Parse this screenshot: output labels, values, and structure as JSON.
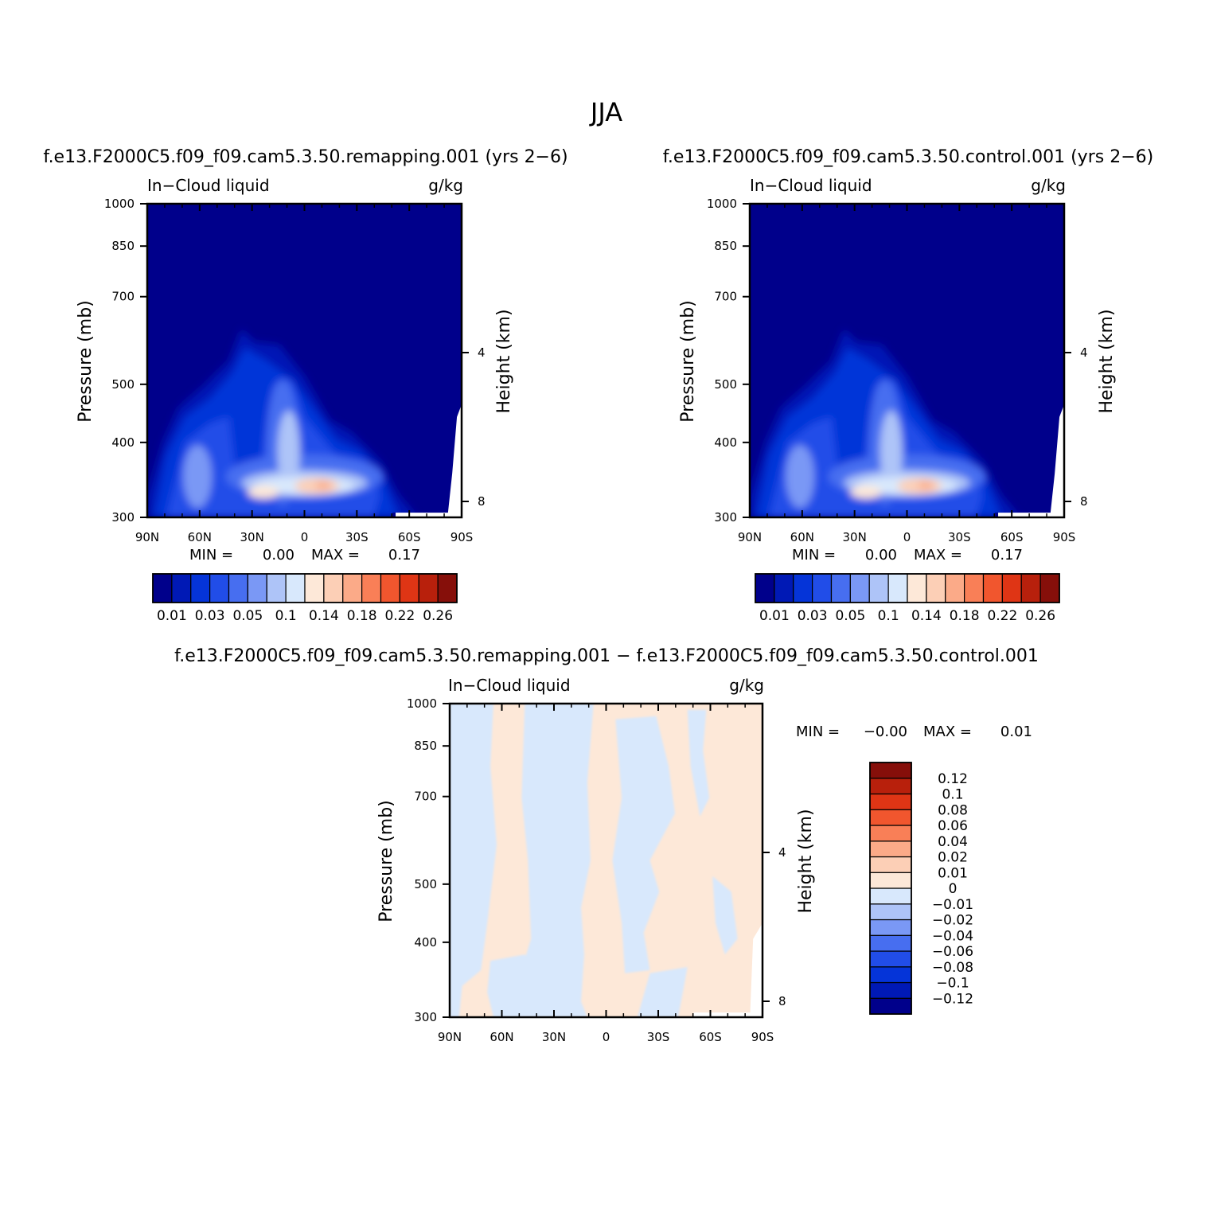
{
  "figure_title": "JJA",
  "chart_data": [
    {
      "type": "contour",
      "id": "remapping",
      "title": "f.e13.F2000C5.f09_f09.cam5.3.50.remapping.001 (yrs 2−6)",
      "left_string": "In−Cloud liquid",
      "right_string": "g/kg",
      "xlabel": "",
      "ylabel": "Pressure (mb)",
      "ylabel_right": "Height (km)",
      "x_ticks": [
        "90N",
        "60N",
        "30N",
        "0",
        "30S",
        "60S",
        "90S"
      ],
      "y_ticks": [
        300,
        400,
        500,
        700,
        850,
        1000
      ],
      "y_ticks_right": [
        8,
        4
      ],
      "ylim": [
        1000,
        300
      ],
      "min_label": "MIN =",
      "min_value": "0.00",
      "max_label": "MAX =",
      "max_value": "0.17",
      "colorbar": {
        "orientation": "horizontal",
        "colors": [
          "#00008b",
          "#0019b5",
          "#0534d8",
          "#214de8",
          "#476ef0",
          "#7a98f5",
          "#aec4f8",
          "#d8e8fc",
          "#fde8d8",
          "#fccfb6",
          "#fbaa88",
          "#f97f57",
          "#f1562e",
          "#df3515",
          "#b8200c",
          "#860f0a"
        ],
        "labels": [
          "0.01",
          "0.03",
          "0.05",
          "0.1",
          "0.14",
          "0.18",
          "0.22",
          "0.26"
        ]
      }
    },
    {
      "type": "contour",
      "id": "control",
      "title": "f.e13.F2000C5.f09_f09.cam5.3.50.control.001 (yrs 2−6)",
      "left_string": "In−Cloud liquid",
      "right_string": "g/kg",
      "xlabel": "",
      "ylabel": "Pressure (mb)",
      "ylabel_right": "Height (km)",
      "x_ticks": [
        "90N",
        "60N",
        "30N",
        "0",
        "30S",
        "60S",
        "90S"
      ],
      "y_ticks": [
        300,
        400,
        500,
        700,
        850,
        1000
      ],
      "y_ticks_right": [
        8,
        4
      ],
      "ylim": [
        1000,
        300
      ],
      "min_label": "MIN =",
      "min_value": "0.00",
      "max_label": "MAX =",
      "max_value": "0.17",
      "colorbar": {
        "orientation": "horizontal",
        "colors": [
          "#00008b",
          "#0019b5",
          "#0534d8",
          "#214de8",
          "#476ef0",
          "#7a98f5",
          "#aec4f8",
          "#d8e8fc",
          "#fde8d8",
          "#fccfb6",
          "#fbaa88",
          "#f97f57",
          "#f1562e",
          "#df3515",
          "#b8200c",
          "#860f0a"
        ],
        "labels": [
          "0.01",
          "0.03",
          "0.05",
          "0.1",
          "0.14",
          "0.18",
          "0.22",
          "0.26"
        ]
      }
    },
    {
      "type": "contour",
      "id": "difference",
      "title": "f.e13.F2000C5.f09_f09.cam5.3.50.remapping.001 − f.e13.F2000C5.f09_f09.cam5.3.50.control.001",
      "left_string": "In−Cloud liquid",
      "right_string": "g/kg",
      "xlabel": "",
      "ylabel": "Pressure (mb)",
      "ylabel_right": "Height (km)",
      "x_ticks": [
        "90N",
        "60N",
        "30N",
        "0",
        "30S",
        "60S",
        "90S"
      ],
      "y_ticks": [
        300,
        400,
        500,
        700,
        850,
        1000
      ],
      "y_ticks_right": [
        8,
        4
      ],
      "ylim": [
        1000,
        300
      ],
      "min_label": "MIN =",
      "min_value": "−0.00",
      "max_label": "MAX =",
      "max_value": "0.01",
      "colorbar": {
        "orientation": "vertical",
        "colors": [
          "#00008b",
          "#0019b5",
          "#0534d8",
          "#214de8",
          "#476ef0",
          "#7a98f5",
          "#aec4f8",
          "#d8e8fc",
          "#fde8d8",
          "#fccfb6",
          "#fbaa88",
          "#f97f57",
          "#f1562e",
          "#df3515",
          "#b8200c",
          "#860f0a"
        ],
        "labels": [
          "−0.12",
          "−0.1",
          "−0.08",
          "−0.06",
          "−0.04",
          "−0.02",
          "−0.01",
          "0",
          "0.01",
          "0.02",
          "0.04",
          "0.06",
          "0.08",
          "0.1",
          "0.12"
        ]
      }
    }
  ]
}
